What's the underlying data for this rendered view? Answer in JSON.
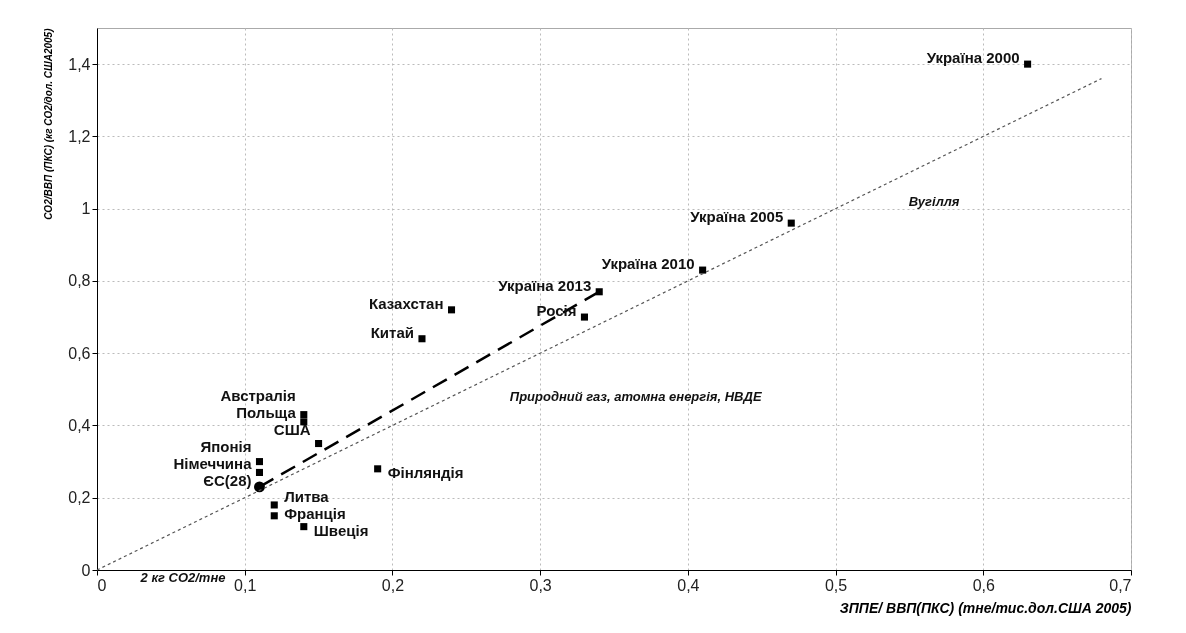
{
  "chart_data": {
    "type": "scatter",
    "xlabel": "ЗППЕ/ ВВП(ПКС) (тне/тис.дол.США 2005)",
    "ylabel": "CO2/ВВП (ПКС) (кг CO2/дол. США2005)",
    "xlim": [
      0,
      0.7
    ],
    "xticks": [
      0,
      {
        "value": 0.1,
        "label": "0,1"
      },
      {
        "value": 0.2,
        "label": "0,2"
      },
      {
        "value": 0.3,
        "label": "0,3"
      },
      {
        "value": 0.4,
        "label": "0,4"
      },
      {
        "value": 0.5,
        "label": "0,5"
      },
      {
        "value": 0.6,
        "label": "0,6"
      },
      {
        "value": 0.7,
        "label": "0,7"
      }
    ],
    "ylim": [
      0,
      1.5
    ],
    "yticks": [
      0,
      {
        "value": 0.2,
        "label": "0,2"
      },
      {
        "value": 0.4,
        "label": "0,4"
      },
      {
        "value": 0.6,
        "label": "0,6"
      },
      {
        "value": 0.8,
        "label": "0,8"
      },
      1,
      {
        "value": 1.2,
        "label": "1,2"
      },
      {
        "value": 1.4,
        "label": "1,4"
      }
    ],
    "grid": true,
    "series": [
      {
        "marker": "square",
        "color": "#000000",
        "x": [
          0.63,
          0.47,
          0.41,
          0.34,
          0.24,
          0.22,
          0.33,
          0.14,
          0.14,
          0.15,
          0.11,
          0.11,
          0.12,
          0.12,
          0.14,
          0.19
        ],
        "values": [
          1.4,
          0.96,
          0.83,
          0.77,
          0.72,
          0.64,
          0.7,
          0.43,
          0.41,
          0.35,
          0.3,
          0.27,
          0.18,
          0.15,
          0.12,
          0.28
        ]
      },
      {
        "marker": "circle",
        "color": "#000000",
        "x": [
          0.11
        ],
        "values": [
          0.23
        ]
      },
      {
        "type": "line",
        "line_style": "dashed",
        "color": "#000000",
        "x": [
          0.11,
          0.34
        ],
        "values": [
          0.23,
          0.77
        ]
      },
      {
        "type": "line",
        "line_style": "dotted",
        "color": "#555555",
        "x": [
          0,
          0.68
        ],
        "values": [
          0,
          1.36
        ]
      }
    ],
    "annotations": [
      {
        "text": "Україна 2000",
        "x": 0.63,
        "y": 1.4
      },
      {
        "text": "Україна 2005",
        "x": 0.47,
        "y": 0.96
      },
      {
        "text": "Україна 2010",
        "x": 0.41,
        "y": 0.83
      },
      {
        "text": "Україна 2013",
        "x": 0.34,
        "y": 0.77
      },
      {
        "text": "Казахстан",
        "x": 0.24,
        "y": 0.72
      },
      {
        "text": "Китай",
        "x": 0.22,
        "y": 0.64
      },
      {
        "text": "Росія",
        "x": 0.33,
        "y": 0.7
      },
      {
        "text": "Австралія",
        "x": 0.14,
        "y": 0.43
      },
      {
        "text": "Польща",
        "x": 0.14,
        "y": 0.41
      },
      {
        "text": "США",
        "x": 0.15,
        "y": 0.35
      },
      {
        "text": "Японія",
        "x": 0.11,
        "y": 0.3
      },
      {
        "text": "Німеччина",
        "x": 0.11,
        "y": 0.27
      },
      {
        "text": "ЄС(28)",
        "x": 0.11,
        "y": 0.23
      },
      {
        "text": "Литва",
        "x": 0.12,
        "y": 0.18
      },
      {
        "text": "Франція",
        "x": 0.12,
        "y": 0.15
      },
      {
        "text": "Швеція",
        "x": 0.14,
        "y": 0.12
      },
      {
        "text": "Фінляндія",
        "x": 0.19,
        "y": 0.28
      },
      {
        "text": "Вугілля",
        "x": 0.54,
        "y": 1.08
      },
      {
        "text": "Природний газ, атомна енергія, НВДЕ",
        "x": 0.27,
        "y": 0.54
      },
      {
        "text": "2 кг CO2/тне",
        "x": 0.02,
        "y": 0.04
      }
    ]
  }
}
